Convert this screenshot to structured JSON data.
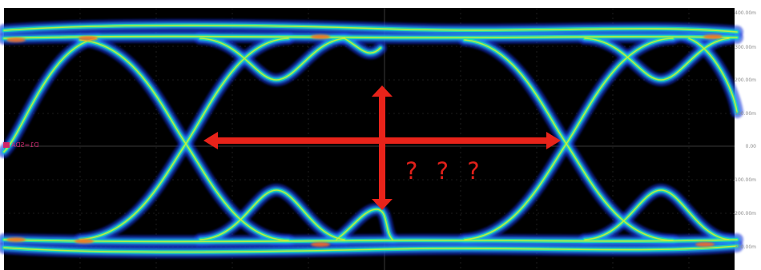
{
  "display": {
    "background": "#000000",
    "trace_colors": [
      "#1a2fd8",
      "#1f9af0",
      "#22e3a8",
      "#c9f03a",
      "#ff7a1a",
      "#ff2a1a"
    ],
    "y_axis_labels": [
      "400.00m",
      "300.00m",
      "200.00m",
      "100.00m",
      "0.00",
      "-100.00m",
      "-200.00m",
      "-300.00m"
    ],
    "channel_marker_label": "D1=SDA"
  },
  "annotation": {
    "color": "#e8231a",
    "horizontal_arrow": "double-headed-arrow",
    "vertical_arrow": "double-headed-arrow",
    "question_marks": "? ? ?"
  }
}
